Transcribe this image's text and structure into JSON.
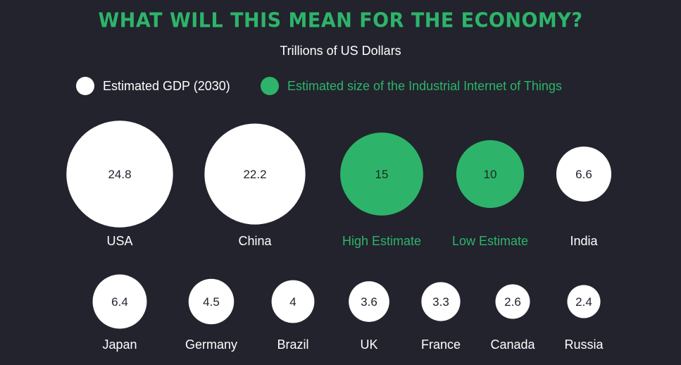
{
  "title": "WHAT WILL THIS MEAN FOR THE ECONOMY?",
  "subtitle": "Trillions of US Dollars",
  "colors": {
    "background": "#22232d",
    "gdp": "#ffffff",
    "iiot": "#2db46a",
    "title": "#2db46a",
    "bubble_text_light": "#22232d",
    "bubble_text_green": "#1c2a22"
  },
  "legend": [
    {
      "label": "Estimated GDP (2030)",
      "color": "#ffffff"
    },
    {
      "label": "Estimated size of the Industrial Internet of Things",
      "color": "#2db46a"
    }
  ],
  "chart_data": {
    "type": "bubble",
    "unit": "Trillions of US Dollars",
    "series": [
      {
        "name": "Estimated GDP (2030)",
        "categories": [
          "USA",
          "China",
          "India",
          "Japan",
          "Germany",
          "Brazil",
          "UK",
          "France",
          "Canada",
          "Russia"
        ],
        "values": [
          24.8,
          22.2,
          6.6,
          6.4,
          4.5,
          4,
          3.6,
          3.3,
          2.6,
          2.4
        ]
      },
      {
        "name": "Estimated size of the Industrial Internet of Things",
        "categories": [
          "High Estimate",
          "Low Estimate"
        ],
        "values": [
          15,
          10
        ]
      }
    ],
    "points": [
      {
        "label": "USA",
        "value": 24.8,
        "value_label": "24.8",
        "series": 0
      },
      {
        "label": "China",
        "value": 22.2,
        "value_label": "22.2",
        "series": 0
      },
      {
        "label": "High Estimate",
        "value": 15,
        "value_label": "15",
        "series": 1
      },
      {
        "label": "Low Estimate",
        "value": 10,
        "value_label": "10",
        "series": 1
      },
      {
        "label": "India",
        "value": 6.6,
        "value_label": "6.6",
        "series": 0
      },
      {
        "label": "Japan",
        "value": 6.4,
        "value_label": "6.4",
        "series": 0
      },
      {
        "label": "Germany",
        "value": 4.5,
        "value_label": "4.5",
        "series": 0
      },
      {
        "label": "Brazil",
        "value": 4,
        "value_label": "4",
        "series": 0
      },
      {
        "label": "UK",
        "value": 3.6,
        "value_label": "3.6",
        "series": 0
      },
      {
        "label": "France",
        "value": 3.3,
        "value_label": "3.3",
        "series": 0
      },
      {
        "label": "Canada",
        "value": 2.6,
        "value_label": "2.6",
        "series": 0
      },
      {
        "label": "Russia",
        "value": 2.4,
        "value_label": "2.4",
        "series": 0
      }
    ]
  }
}
